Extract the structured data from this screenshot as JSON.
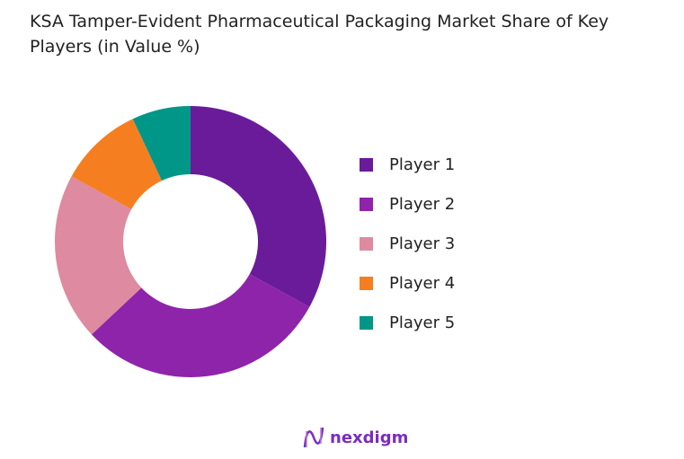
{
  "chart_data": {
    "type": "pie",
    "title": "KSA Tamper-Evident Pharmaceutical Packaging Market Share of Key Players (in Value %)",
    "donut": true,
    "legend_position": "right",
    "categories": [
      "Player 1",
      "Player 2",
      "Player 3",
      "Player 4",
      "Player 5"
    ],
    "values": [
      33,
      30,
      20,
      10,
      7
    ],
    "colors": [
      "#6a1b9a",
      "#8e24aa",
      "#de8aa0",
      "#f57f20",
      "#009688"
    ]
  },
  "logo": {
    "text": "nexdigm"
  }
}
